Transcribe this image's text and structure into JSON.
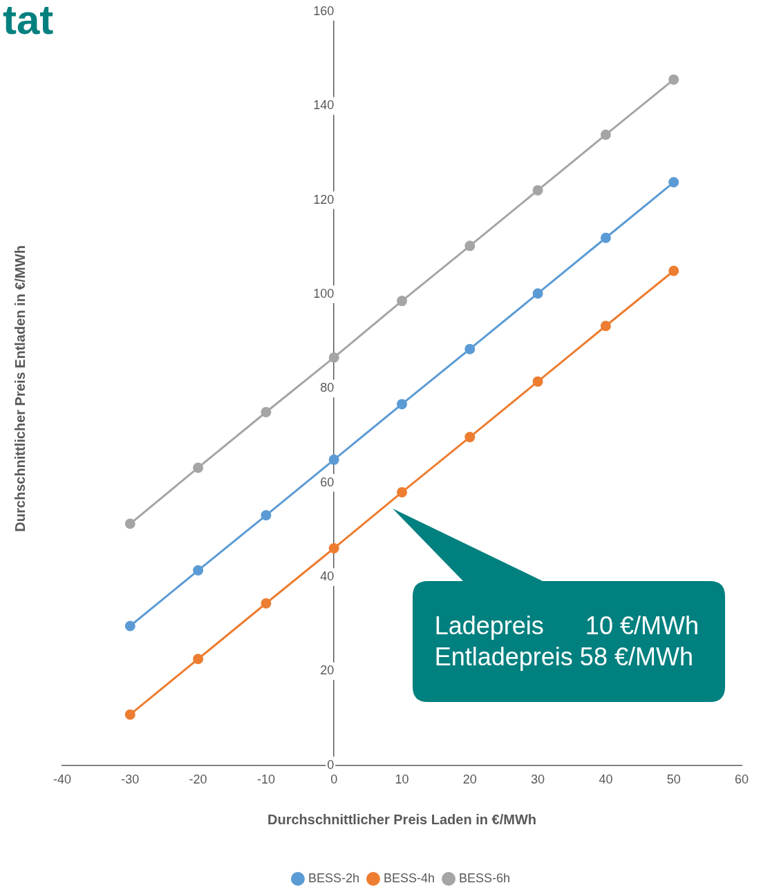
{
  "chart_data": {
    "type": "line",
    "title": "tat",
    "xlabel": "Durchschnittlicher Preis Laden in €/MWh",
    "ylabel": "Durchschnittlicher Preis Entladen in €/MWh",
    "x": [
      -30,
      -20,
      -10,
      0,
      10,
      20,
      30,
      40,
      50
    ],
    "series": [
      {
        "name": "BESS-2h",
        "color": "#5b9bd5",
        "values": [
          29.6,
          41.4,
          53.1,
          64.9,
          76.7,
          88.4,
          100.2,
          112.0,
          123.8
        ]
      },
      {
        "name": "BESS-4h",
        "color": "#ed7d31",
        "values": [
          10.8,
          22.6,
          34.4,
          46.1,
          58,
          69.7,
          81.5,
          93.3,
          105.0
        ]
      },
      {
        "name": "BESS-6h",
        "color": "#a5a5a5",
        "values": [
          51.3,
          63.2,
          75.0,
          86.6,
          98.6,
          110.3,
          122.1,
          133.9,
          145.6
        ]
      }
    ],
    "xlim": [
      -40,
      60
    ],
    "xticks": [
      -40,
      -30,
      -20,
      -10,
      0,
      10,
      20,
      30,
      40,
      50,
      60
    ],
    "ylim": [
      0,
      160
    ],
    "yticks": [
      0,
      20,
      40,
      60,
      80,
      100,
      120,
      140,
      160
    ],
    "grid": false,
    "legend": "bottom",
    "marker": "circle",
    "line_style": "solid",
    "annotations": [
      "Ladepreis      10 €/MWh\nEntladepreis 58 €/MWh"
    ]
  }
}
